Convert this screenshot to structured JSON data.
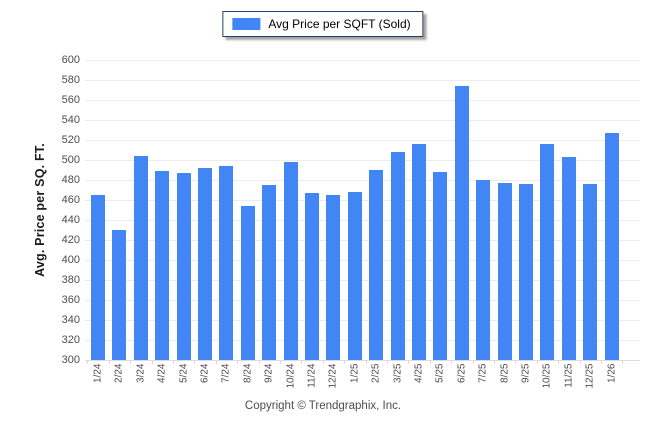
{
  "legend": {
    "label": "Avg Price per SQFT (Sold)",
    "swatch_color": "#4285f4"
  },
  "footer": {
    "copyright": "Copyright © Trendgraphix, Inc."
  },
  "chart_data": {
    "type": "bar",
    "title": "",
    "xlabel": "",
    "ylabel": "Avg. Price per SQ. FT.",
    "ylim": [
      300,
      600
    ],
    "ytick_step": 20,
    "grid": true,
    "legend_position": "top-center",
    "bar_color": "#4285f4",
    "gridline_color": "#ebebeb",
    "categories": [
      "1/24",
      "2/24",
      "3/24",
      "4/24",
      "5/24",
      "6/24",
      "7/24",
      "8/24",
      "9/24",
      "10/24",
      "11/24",
      "12/24",
      "1/25",
      "2/25",
      "3/25",
      "4/25",
      "5/25",
      "6/25",
      "7/25",
      "8/25",
      "9/25",
      "10/25",
      "11/25",
      "12/25",
      "1/26"
    ],
    "values": [
      465,
      430,
      504,
      489,
      487,
      492,
      494,
      454,
      475,
      498,
      467,
      465,
      468,
      490,
      508,
      516,
      488,
      574,
      480,
      477,
      476,
      516,
      503,
      476,
      527
    ]
  }
}
